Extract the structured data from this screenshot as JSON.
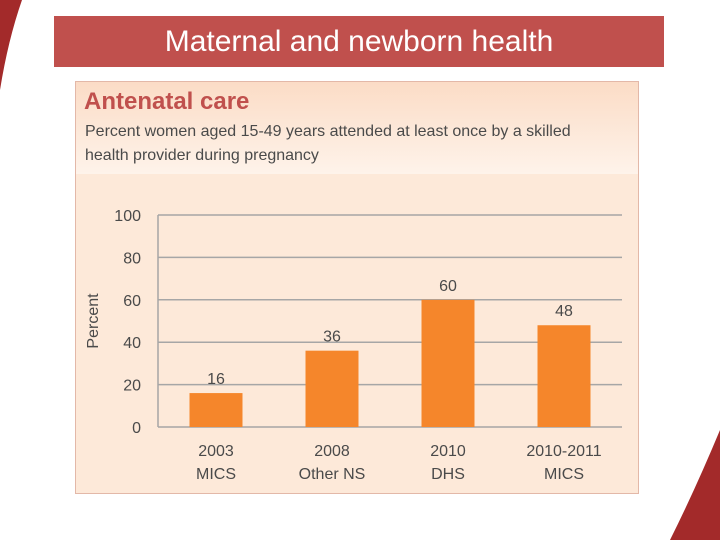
{
  "slide": {
    "title": "Maternal and newborn health"
  },
  "panel": {
    "heading": "Antenatal care",
    "subtitle": "Percent women aged 15-49 years attended at least once by a skilled health provider during pregnancy"
  },
  "colors": {
    "brand_red": "#c0504d",
    "bar_orange": "#f5862b",
    "panel_bg": "#fde9d9",
    "gridline": "#a6a6a6",
    "text": "#4a4a4a"
  },
  "chart_data": {
    "type": "bar",
    "title": "Antenatal care",
    "ylabel": "Percent",
    "xlabel": "",
    "ylim": [
      0,
      100
    ],
    "yticks": [
      0,
      20,
      40,
      60,
      80,
      100
    ],
    "categories": [
      [
        "2003",
        "MICS"
      ],
      [
        "2008",
        "Other NS"
      ],
      [
        "2010",
        "DHS"
      ],
      [
        "2010-2011",
        "MICS"
      ]
    ],
    "values": [
      16,
      36,
      60,
      48
    ],
    "data_labels": [
      "16",
      "36",
      "60",
      "48"
    ],
    "grid": true
  }
}
